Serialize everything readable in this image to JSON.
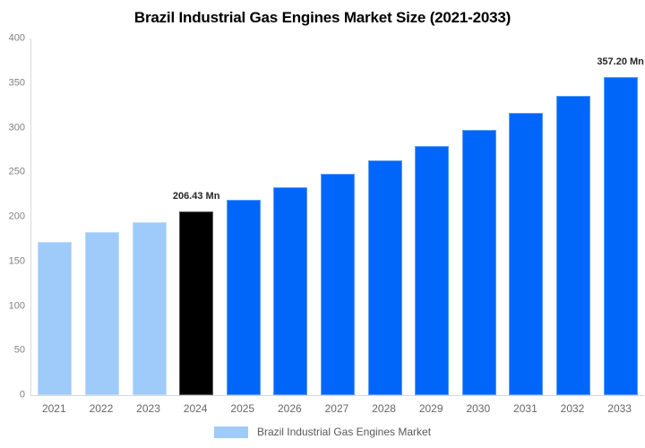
{
  "chart_data": {
    "type": "bar",
    "title": "Brazil Industrial Gas Engines Market Size (2021-2033)",
    "unit": "Mn",
    "categories": [
      "2021",
      "2022",
      "2023",
      "2024",
      "2025",
      "2026",
      "2027",
      "2028",
      "2029",
      "2030",
      "2031",
      "2032",
      "2033"
    ],
    "values": [
      171.9,
      182.7,
      194.2,
      206.43,
      219.4,
      233.2,
      247.9,
      263.4,
      279.9,
      297.5,
      316.2,
      336.0,
      357.2
    ],
    "bar_colors": [
      "#9ECBF9",
      "#9ECBF9",
      "#9ECBF9",
      "#000000",
      "#0066F9",
      "#0066F9",
      "#0066F9",
      "#0066F9",
      "#0066F9",
      "#0066F9",
      "#0066F9",
      "#0066F9",
      "#0066F9"
    ],
    "annotations": [
      {
        "category": "2024",
        "text": "206.43 Mn"
      },
      {
        "category": "2033",
        "text": "357.20 Mn"
      }
    ],
    "xlabel": "",
    "ylabel": "",
    "ylim": [
      0,
      400
    ],
    "yticks": [
      0,
      50,
      100,
      150,
      200,
      250,
      300,
      350,
      400
    ],
    "grid": false,
    "legend_position": "bottom"
  },
  "legend": {
    "label": "Brazil Industrial Gas Engines Market",
    "swatch_color": "#9ECBF9"
  },
  "colors": {
    "past_bar": "#9ECBF9",
    "current_bar": "#000000",
    "forecast_bar": "#0066F9",
    "axis_line": "#D9D9D9",
    "y_tick_label": "#808080",
    "x_tick_label": "#666666",
    "annotation_text": "#262626",
    "legend_text": "#595959",
    "title_text": "#000000"
  }
}
